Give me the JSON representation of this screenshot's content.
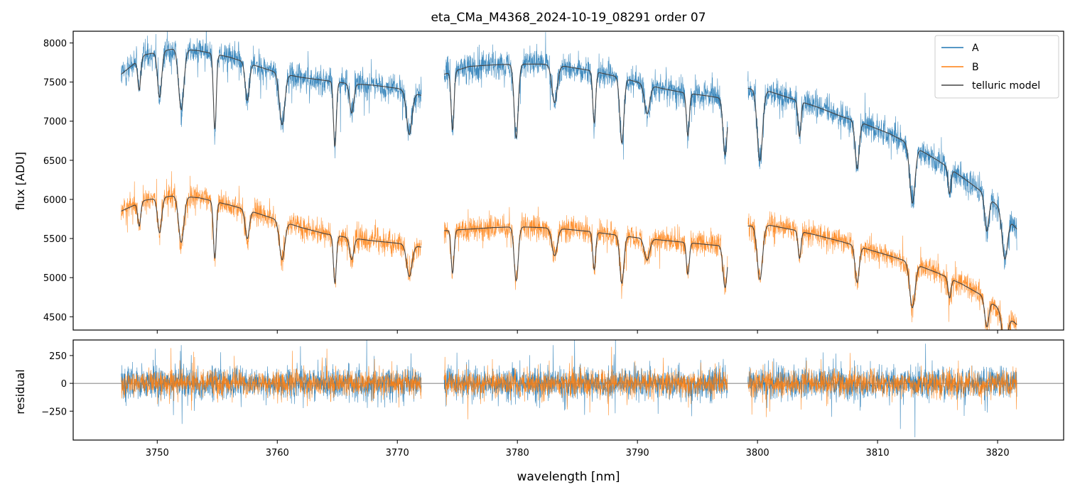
{
  "chart_data": [
    {
      "type": "line",
      "title": "eta_CMa_M4368_2024-10-19_08291  order 07",
      "xlabel": "",
      "ylabel": "flux [ADU]",
      "xlim": [
        3743,
        3825.5
      ],
      "ylim": [
        4330,
        8150
      ],
      "x_ticks": [
        3750,
        3760,
        3770,
        3780,
        3790,
        3800,
        3810,
        3820
      ],
      "y_ticks": [
        4500,
        5000,
        5500,
        6000,
        6500,
        7000,
        7500,
        8000
      ],
      "legend_position": "top-right",
      "grid": false,
      "segments": [
        [
          3747.0,
          3772.0
        ],
        [
          3773.9,
          3797.5
        ],
        [
          3799.2,
          3821.6
        ]
      ],
      "series": [
        {
          "name": "A",
          "color": "#1f77b4",
          "continuum": [
            [
              3747.0,
              7600
            ],
            [
              3749.0,
              7850
            ],
            [
              3751.5,
              7930
            ],
            [
              3753.5,
              7900
            ],
            [
              3756.0,
              7820
            ],
            [
              3758.0,
              7720
            ],
            [
              3760.0,
              7620
            ],
            [
              3762.0,
              7560
            ],
            [
              3764.0,
              7520
            ],
            [
              3766.0,
              7480
            ],
            [
              3768.0,
              7460
            ],
            [
              3770.0,
              7420
            ],
            [
              3772.0,
              7330
            ],
            [
              3773.9,
              7600
            ],
            [
              3776.0,
              7700
            ],
            [
              3778.0,
              7720
            ],
            [
              3780.0,
              7730
            ],
            [
              3782.0,
              7730
            ],
            [
              3784.0,
              7700
            ],
            [
              3786.0,
              7650
            ],
            [
              3788.0,
              7580
            ],
            [
              3790.0,
              7500
            ],
            [
              3792.0,
              7420
            ],
            [
              3794.0,
              7360
            ],
            [
              3796.0,
              7320
            ],
            [
              3797.5,
              7280
            ],
            [
              3799.2,
              7420
            ],
            [
              3801.0,
              7380
            ],
            [
              3803.0,
              7280
            ],
            [
              3805.0,
              7180
            ],
            [
              3807.0,
              7060
            ],
            [
              3809.0,
              6960
            ],
            [
              3811.0,
              6840
            ],
            [
              3813.0,
              6680
            ],
            [
              3815.0,
              6500
            ],
            [
              3817.0,
              6290
            ],
            [
              3818.5,
              6120
            ],
            [
              3820.0,
              5920
            ],
            [
              3821.6,
              5620
            ]
          ]
        },
        {
          "name": "B",
          "color": "#ff7f0e",
          "continuum": [
            [
              3747.0,
              5850
            ],
            [
              3749.0,
              5990
            ],
            [
              3751.5,
              6050
            ],
            [
              3753.5,
              6020
            ],
            [
              3756.0,
              5930
            ],
            [
              3758.0,
              5840
            ],
            [
              3760.0,
              5740
            ],
            [
              3762.0,
              5640
            ],
            [
              3764.0,
              5560
            ],
            [
              3766.0,
              5510
            ],
            [
              3768.0,
              5470
            ],
            [
              3770.0,
              5440
            ],
            [
              3772.0,
              5390
            ],
            [
              3773.9,
              5600
            ],
            [
              3776.0,
              5620
            ],
            [
              3778.0,
              5640
            ],
            [
              3780.0,
              5650
            ],
            [
              3782.0,
              5640
            ],
            [
              3784.0,
              5620
            ],
            [
              3786.0,
              5590
            ],
            [
              3788.0,
              5550
            ],
            [
              3790.0,
              5510
            ],
            [
              3792.0,
              5480
            ],
            [
              3794.0,
              5450
            ],
            [
              3796.0,
              5420
            ],
            [
              3797.5,
              5400
            ],
            [
              3799.2,
              5660
            ],
            [
              3801.0,
              5670
            ],
            [
              3803.0,
              5610
            ],
            [
              3805.0,
              5540
            ],
            [
              3807.0,
              5460
            ],
            [
              3809.0,
              5370
            ],
            [
              3811.0,
              5280
            ],
            [
              3813.0,
              5180
            ],
            [
              3815.0,
              5060
            ],
            [
              3817.0,
              4920
            ],
            [
              3818.5,
              4790
            ],
            [
              3820.0,
              4620
            ],
            [
              3821.6,
              4400
            ]
          ]
        },
        {
          "name": "telluric model",
          "color": "#444444"
        }
      ],
      "absorption_lines": [
        3748.5,
        3750.2,
        3752.0,
        3754.8,
        3757.5,
        3760.4,
        3764.8,
        3766.2,
        3771.0,
        3774.6,
        3779.9,
        3783.1,
        3786.4,
        3788.7,
        3790.8,
        3794.2,
        3797.3,
        3800.2,
        3803.5,
        3808.3,
        3812.9,
        3816.0,
        3819.1,
        3820.6
      ]
    },
    {
      "type": "line",
      "title": "",
      "xlabel": "wavelength [nm]",
      "ylabel": "residual",
      "xlim": [
        3743,
        3825.5
      ],
      "ylim": [
        -510,
        390
      ],
      "x_ticks": [
        3750,
        3760,
        3770,
        3780,
        3790,
        3800,
        3810,
        3820
      ],
      "y_ticks": [
        -250,
        0,
        250
      ],
      "zero_line": true,
      "noise_sigma": [
        {
          "name": "A",
          "sigma": 175
        },
        {
          "name": "B",
          "sigma": 140
        }
      ]
    }
  ]
}
